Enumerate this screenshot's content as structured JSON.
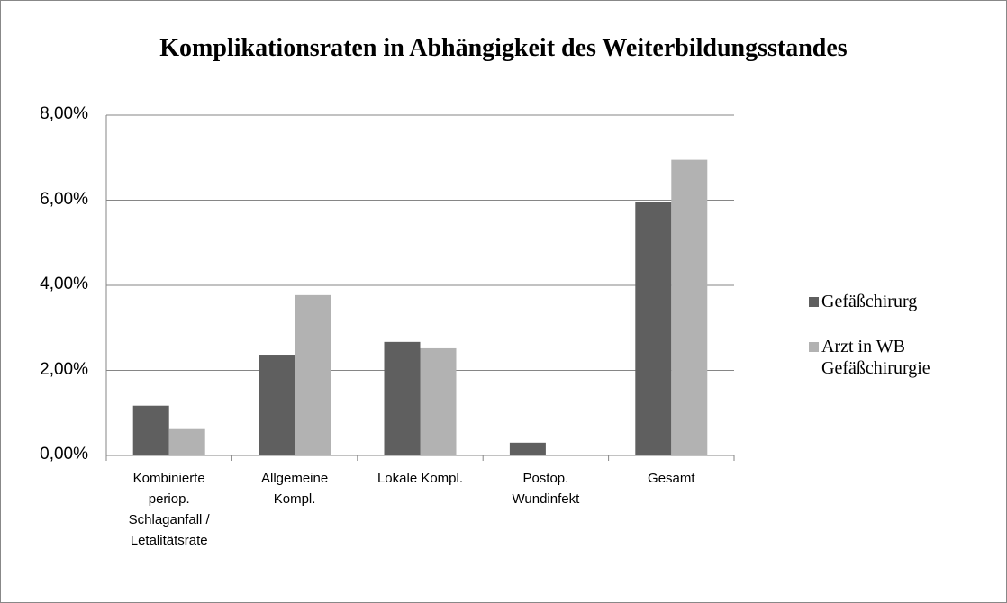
{
  "chart_data": {
    "type": "bar",
    "title": "Komplikationsraten in Abhängigkeit des Weiterbildungsstandes",
    "categories": [
      "Kombinierte periop. Schlaganfall / Letalitätsrate",
      "Allgemeine Kompl.",
      "Lokale Kompl.",
      "Postop. Wundinfekt",
      "Gesamt"
    ],
    "series": [
      {
        "name": "Gefäßchirurg",
        "color": "#5f5f5f",
        "values": [
          1.17,
          2.37,
          2.67,
          0.3,
          5.95
        ]
      },
      {
        "name": "Arzt in WB Gefäßchirurgie",
        "color": "#b2b2b2",
        "values": [
          0.62,
          3.77,
          2.52,
          0,
          6.95
        ]
      }
    ],
    "ylim": [
      0,
      8
    ],
    "yticks": [
      {
        "value": 0,
        "label": "0,00%"
      },
      {
        "value": 2,
        "label": "2,00%"
      },
      {
        "value": 4,
        "label": "4,00%"
      },
      {
        "value": 6,
        "label": "6,00%"
      },
      {
        "value": 8,
        "label": "8,00%"
      }
    ],
    "grid": true,
    "legend": "right"
  }
}
